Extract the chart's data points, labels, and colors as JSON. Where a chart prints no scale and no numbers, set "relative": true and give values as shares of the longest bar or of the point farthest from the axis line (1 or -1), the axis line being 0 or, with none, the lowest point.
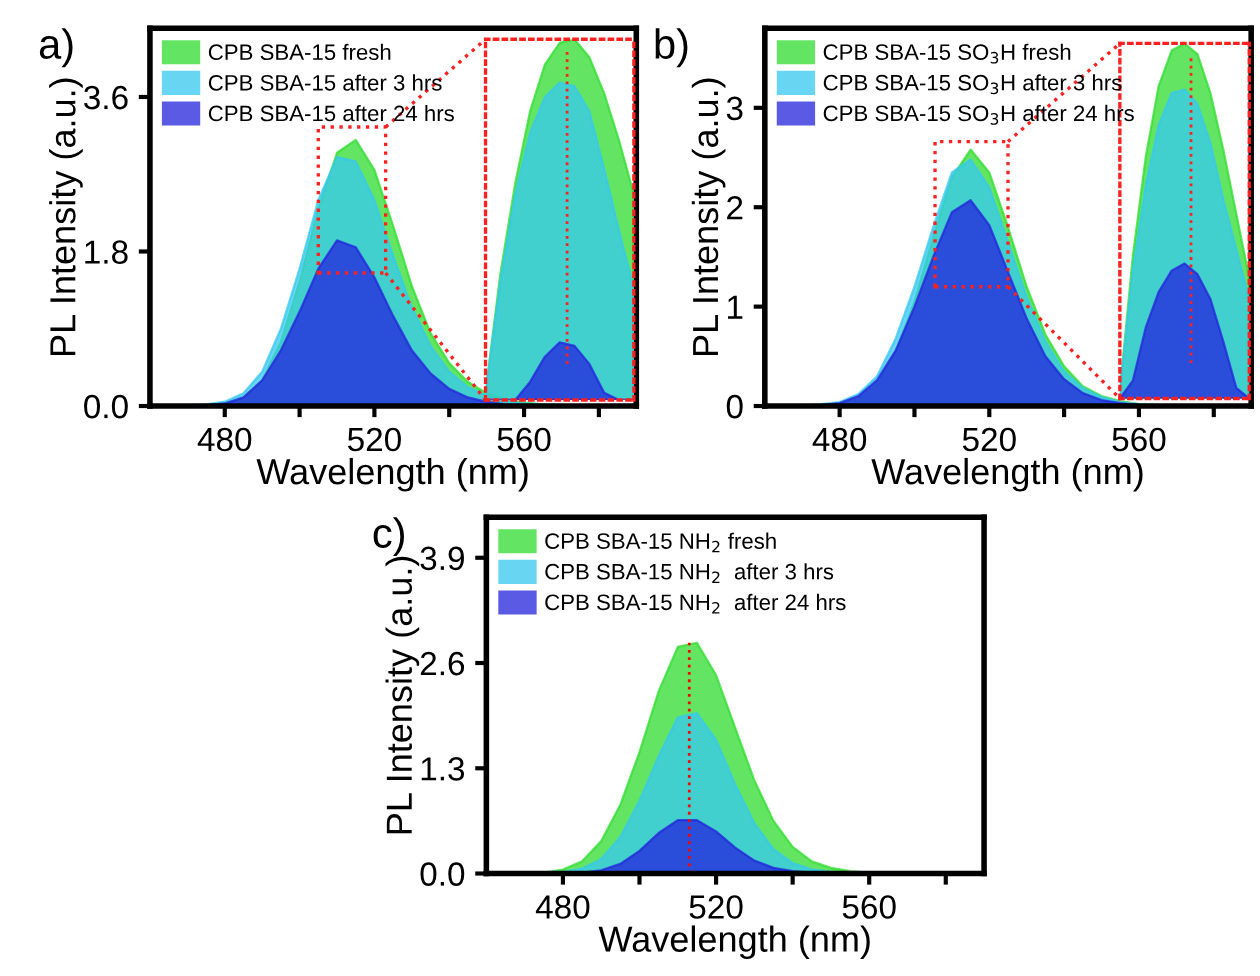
{
  "chart_data": [
    {
      "type": "area",
      "title": "a)",
      "xlabel": "Wavelength (nm)",
      "ylabel": "PL Intensity (a.u.)",
      "xlim": [
        460,
        590
      ],
      "ylim": [
        0,
        4.4
      ],
      "xticks": [
        480,
        {
          "value": 500,
          "label": null
        },
        520,
        {
          "value": 540,
          "label": null
        },
        560,
        {
          "value": 580,
          "label": null
        }
      ],
      "yticks": [
        {
          "value": 0,
          "label": "0.0"
        },
        1.8,
        3.6
      ],
      "legend": "top left",
      "grid": false,
      "x": [
        470,
        475,
        480,
        485,
        490,
        495,
        500,
        505,
        510,
        515,
        520,
        525,
        530,
        535,
        540,
        545,
        550,
        555,
        560,
        565,
        570
      ],
      "series": [
        {
          "name": "CPB SBA-15 fresh",
          "color": "#2fdc2f",
          "values": [
            0,
            0.01,
            0.03,
            0.1,
            0.3,
            0.75,
            1.45,
            2.3,
            2.95,
            3.1,
            2.75,
            2.1,
            1.4,
            0.85,
            0.5,
            0.28,
            0.15,
            0.08,
            0.04,
            0.02,
            0.01
          ]
        },
        {
          "name": "CPB SBA-15 after 3 hrs",
          "color": "#36c8f0",
          "values": [
            0.01,
            0.02,
            0.05,
            0.15,
            0.4,
            0.9,
            1.6,
            2.4,
            2.9,
            2.85,
            2.4,
            1.75,
            1.15,
            0.7,
            0.4,
            0.22,
            0.12,
            0.06,
            0.03,
            0.02,
            0.01
          ]
        },
        {
          "name": "CPB SBA-15 after 24 hrs",
          "color": "#2323dc",
          "values": [
            0,
            0.01,
            0.03,
            0.1,
            0.3,
            0.65,
            1.1,
            1.6,
            1.93,
            1.85,
            1.5,
            1.05,
            0.65,
            0.38,
            0.2,
            0.1,
            0.05,
            0.02,
            0.01,
            0,
            0
          ]
        }
      ]
    },
    {
      "type": "area",
      "relative": true,
      "tick_labels": false,
      "categories": [
        null,
        null,
        null,
        null,
        null,
        null,
        null,
        null,
        null,
        null,
        null
      ],
      "series": [
        {
          "color": "#2fdc2f",
          "values": [
            0.02,
            0.35,
            0.6,
            0.8,
            0.93,
            0.99,
            1.0,
            0.95,
            0.85,
            0.72,
            0.57
          ]
        },
        {
          "color": "#36c8f0",
          "values": [
            0.02,
            0.33,
            0.57,
            0.74,
            0.84,
            0.88,
            0.87,
            0.8,
            0.64,
            0.47,
            0.31
          ]
        },
        {
          "color": "#2323dc",
          "values": [
            0,
            0,
            0,
            0.05,
            0.12,
            0.16,
            0.15,
            0.1,
            0.02,
            0,
            0
          ]
        }
      ]
    },
    {
      "type": "area",
      "title": "b)",
      "xlabel": "Wavelength (nm)",
      "ylabel": "PL Intensity (a.u.)",
      "xlim": [
        460,
        590
      ],
      "ylim": [
        0,
        3.8
      ],
      "xticks": [
        480,
        {
          "value": 500,
          "label": null
        },
        520,
        {
          "value": 540,
          "label": null
        },
        560,
        {
          "value": 580,
          "label": null
        }
      ],
      "yticks": [
        0,
        1,
        2,
        3
      ],
      "legend": "top left",
      "grid": false,
      "x": [
        470,
        475,
        480,
        485,
        490,
        495,
        500,
        505,
        510,
        515,
        520,
        525,
        530,
        535,
        540,
        545,
        550,
        555,
        560,
        565,
        570
      ],
      "series": [
        {
          "name": "CPB SBA-15 SO$_{3}$H fresh",
          "color": "#2fdc2f",
          "values": [
            0,
            0.01,
            0.03,
            0.08,
            0.22,
            0.55,
            1.05,
            1.7,
            2.3,
            2.58,
            2.35,
            1.8,
            1.2,
            0.72,
            0.4,
            0.2,
            0.1,
            0.05,
            0.02,
            0.01,
            0
          ]
        },
        {
          "name": "CPB SBA-15 SO$_{3}$H after 3 hrs",
          "color": "#36c8f0",
          "values": [
            0.01,
            0.02,
            0.04,
            0.12,
            0.3,
            0.68,
            1.2,
            1.8,
            2.35,
            2.48,
            2.2,
            1.65,
            1.1,
            0.65,
            0.35,
            0.18,
            0.09,
            0.04,
            0.02,
            0.01,
            0
          ]
        },
        {
          "name": "CPB SBA-15 SO$_{3}$H after 24 hrs",
          "color": "#2323dc",
          "values": [
            0,
            0.01,
            0.03,
            0.1,
            0.26,
            0.56,
            1.0,
            1.5,
            1.95,
            2.07,
            1.82,
            1.35,
            0.88,
            0.5,
            0.27,
            0.13,
            0.06,
            0.03,
            0.01,
            0,
            0
          ]
        }
      ]
    },
    {
      "type": "area",
      "relative": true,
      "tick_labels": false,
      "categories": [
        null,
        null,
        null,
        null,
        null,
        null,
        null,
        null,
        null,
        null,
        null
      ],
      "series": [
        {
          "color": "#2fdc2f",
          "values": [
            0.02,
            0.4,
            0.68,
            0.88,
            0.98,
            1.0,
            0.97,
            0.86,
            0.7,
            0.52,
            0.34
          ]
        },
        {
          "color": "#36c8f0",
          "values": [
            0.02,
            0.36,
            0.6,
            0.77,
            0.86,
            0.87,
            0.83,
            0.72,
            0.56,
            0.42,
            0.28
          ]
        },
        {
          "color": "#2323dc",
          "values": [
            0,
            0.05,
            0.2,
            0.3,
            0.36,
            0.38,
            0.35,
            0.28,
            0.16,
            0.03,
            0
          ]
        }
      ]
    },
    {
      "type": "area",
      "title": "c)",
      "xlabel": "Wavelength (nm)",
      "ylabel": "PL Intensity (a.u.)",
      "xlim": [
        460,
        590
      ],
      "ylim": [
        0,
        4.4
      ],
      "xticks": [
        480,
        {
          "value": 500,
          "label": null
        },
        520,
        {
          "value": 540,
          "label": null
        },
        560,
        {
          "value": 580,
          "label": null
        }
      ],
      "yticks": [
        {
          "value": 0,
          "label": "0.0"
        },
        1.3,
        2.6,
        3.9
      ],
      "legend": "top left",
      "grid": false,
      "ref_lines": [
        {
          "axis": "x",
          "value": 513,
          "color": "#ff0000",
          "line_style": "dotted"
        }
      ],
      "x": [
        470,
        475,
        480,
        485,
        490,
        495,
        500,
        505,
        510,
        515,
        520,
        525,
        530,
        535,
        540,
        545,
        550,
        555,
        560,
        565,
        570
      ],
      "series": [
        {
          "name": "CPB SBA-15 NH$_{2}$ fresh",
          "color": "#2fdc2f",
          "values": [
            0,
            0.01,
            0.05,
            0.15,
            0.4,
            0.85,
            1.5,
            2.25,
            2.8,
            2.85,
            2.45,
            1.8,
            1.15,
            0.65,
            0.33,
            0.15,
            0.07,
            0.03,
            0.01,
            0,
            0
          ]
        },
        {
          "name": "CPB SBA-15 NH$_{2}$  after 3 hrs",
          "color": "#36c8f0",
          "values": [
            0,
            0,
            0.02,
            0.06,
            0.18,
            0.45,
            0.9,
            1.45,
            1.93,
            1.98,
            1.65,
            1.1,
            0.62,
            0.3,
            0.13,
            0.05,
            0.02,
            0.01,
            0,
            0,
            0
          ]
        },
        {
          "name": "CPB SBA-15 NH$_{2}$  after 24 hrs",
          "color": "#2323dc",
          "values": [
            0,
            0,
            0,
            0.01,
            0.04,
            0.12,
            0.28,
            0.5,
            0.66,
            0.66,
            0.52,
            0.32,
            0.16,
            0.07,
            0.03,
            0.01,
            0,
            0,
            0,
            0,
            0
          ]
        }
      ]
    }
  ]
}
